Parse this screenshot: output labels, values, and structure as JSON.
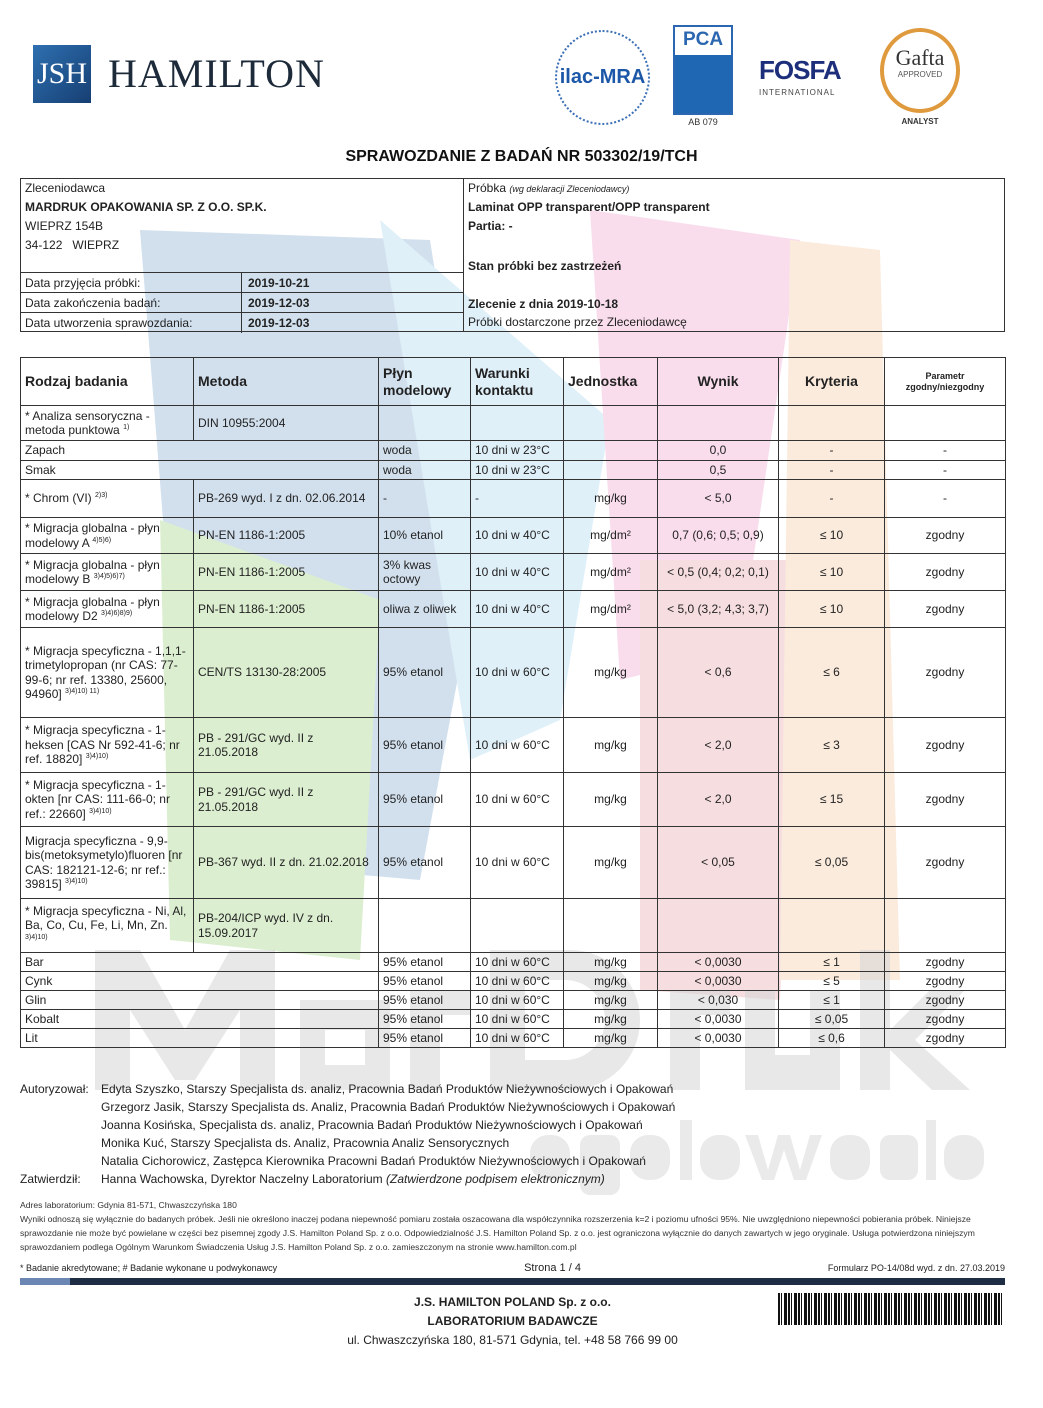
{
  "header": {
    "logo_initials": "JSH",
    "logo_name": "HAMILTON",
    "ilac_logo": "ilac-MRA",
    "pca_logo": "PCA",
    "pca_code": "AB 079",
    "fosfa_logo": "FOSFA",
    "fosfa_sub": "INTERNATIONAL",
    "gafta_logo": "Gafta",
    "gafta_approved": "APPROVED",
    "gafta_sub": "ANALYST"
  },
  "title": "SPRAWOZDANIE Z BADAŃ NR 503302/19/TCH",
  "client": {
    "label": "Zleceniodawca",
    "name": "MARDRUK OPAKOWANIA SP. Z O.O. SP.K.",
    "address1": "WIEPRZ 154B",
    "address2": "34-122   WIEPRZ",
    "dates": [
      {
        "label": "Data przyjęcia próbki:",
        "value": "2019-10-21"
      },
      {
        "label": "Data zakończenia badań:",
        "value": "2019-12-03"
      },
      {
        "label": "Data utworzenia sprawozdania:",
        "value": "2019-12-03"
      }
    ]
  },
  "sample": {
    "label": "Próbka",
    "label_note": "(wg deklaracji Zleceniodawcy)",
    "name": "Laminat OPP transparent/OPP transparent",
    "batch": "Partia: -",
    "condition": "Stan próbki bez zastrzeżeń",
    "order": "Zlecenie z dnia 2019-10-18",
    "delivery": "Próbki dostarczone przez Zleceniodawcę"
  },
  "table": {
    "headers": [
      "Rodzaj badania",
      "Metoda",
      "Płyn modelowy",
      "Warunki kontaktu",
      "Jednostka",
      "Wynik",
      "Kryteria",
      "Parametr zgodny/niezgodny"
    ],
    "rows": [
      {
        "name": "* Analiza sensoryczna - metoda punktowa",
        "sup": "1)",
        "metoda": "DIN 10955:2004",
        "plyn": "",
        "warunki": "",
        "jednostka": "",
        "wynik": "",
        "kryteria": "",
        "param": ""
      },
      {
        "sub": true,
        "name": "Zapach",
        "plyn": "woda",
        "warunki": "10 dni w 23°C",
        "jednostka": "",
        "wynik": "0,0",
        "kryteria": "-",
        "param": "-"
      },
      {
        "sub": true,
        "name": "Smak",
        "plyn": "woda",
        "warunki": "10 dni w 23°C",
        "jednostka": "",
        "wynik": "0,5",
        "kryteria": "-",
        "param": "-"
      },
      {
        "name": "* Chrom (VI)",
        "sup": "2)3)",
        "metoda": "PB-269 wyd. I z dn. 02.06.2014",
        "plyn": "-",
        "warunki": "-",
        "jednostka": "mg/kg",
        "wynik": "< 5,0",
        "kryteria": "-",
        "param": "-"
      },
      {
        "name": "* Migracja globalna - płyn modelowy A",
        "sup": "4)5)6)",
        "metoda": "PN-EN 1186-1:2005",
        "plyn": "10% etanol",
        "warunki": "10 dni w 40°C",
        "jednostka": "mg/dm²",
        "wynik": "0,7 (0,6; 0,5; 0,9)",
        "kryteria": "≤ 10",
        "param": "zgodny"
      },
      {
        "name": "* Migracja globalna - płyn modelowy B",
        "sup": "3)4)5)6)7)",
        "metoda": "PN-EN 1186-1:2005",
        "plyn": "3% kwas octowy",
        "warunki": "10 dni w 40°C",
        "jednostka": "mg/dm²",
        "wynik": "< 0,5 (0,4; 0,2; 0,1)",
        "kryteria": "≤ 10",
        "param": "zgodny"
      },
      {
        "name": "* Migracja globalna - płyn modelowy D2",
        "sup": "3)4)6)8)9)",
        "metoda": "PN-EN 1186-1:2005",
        "plyn": "oliwa z oliwek",
        "warunki": "10 dni w 40°C",
        "jednostka": "mg/dm²",
        "wynik": "< 5,0 (3,2; 4,3; 3,7)",
        "kryteria": "≤ 10",
        "param": "zgodny"
      },
      {
        "name": "* Migracja specyficzna - 1,1,1-trimetylopropan (nr CAS: 77-99-6; nr ref. 13380, 25600, 94960]",
        "sup": "3)4)10) 11)",
        "metoda": "CEN/TS 13130-28:2005",
        "plyn": "95% etanol",
        "warunki": "10 dni w 60°C",
        "jednostka": "mg/kg",
        "wynik": "< 0,6",
        "kryteria": "≤ 6",
        "param": "zgodny"
      },
      {
        "name": "* Migracja specyficzna - 1-heksen [CAS Nr 592-41-6; nr ref. 18820]",
        "sup": "3)4)10)",
        "metoda": "PB - 291/GC wyd. II z 21.05.2018",
        "plyn": "95% etanol",
        "warunki": "10 dni w 60°C",
        "jednostka": "mg/kg",
        "wynik": "< 2,0",
        "kryteria": "≤ 3",
        "param": "zgodny"
      },
      {
        "name": "* Migracja specyficzna - 1-okten  [nr CAS: 111-66-0; nr ref.: 22660]",
        "sup": "3)4)10)",
        "metoda": "PB - 291/GC wyd. II z 21.05.2018",
        "plyn": "95% etanol",
        "warunki": "10 dni w 60°C",
        "jednostka": "mg/kg",
        "wynik": "< 2,0",
        "kryteria": "≤ 15",
        "param": "zgodny"
      },
      {
        "name": "Migracja specyficzna - 9,9-bis(metoksymetylo)fluoren [nr CAS: 182121-12-6; nr ref.: 39815]",
        "sup": "3)4)10)",
        "metoda": "PB-367 wyd. II z dn. 21.02.2018",
        "plyn": "95% etanol",
        "warunki": "10 dni w 60°C",
        "jednostka": "mg/kg",
        "wynik": "< 0,05",
        "kryteria": "≤ 0,05",
        "param": "zgodny"
      },
      {
        "name": "* Migracja specyficzna - Ni, Al, Ba, Co, Cu, Fe, Li, Mn, Zn.",
        "sup": "3)4)10)",
        "metoda": "PB-204/ICP wyd. IV z dn. 15.09.2017",
        "plyn": "",
        "warunki": "",
        "jednostka": "",
        "wynik": "",
        "kryteria": "",
        "param": ""
      },
      {
        "sub": true,
        "name": "Bar",
        "plyn": "95% etanol",
        "warunki": "10 dni w 60°C",
        "jednostka": "mg/kg",
        "wynik": "< 0,0030",
        "kryteria": "≤ 1",
        "param": "zgodny"
      },
      {
        "sub": true,
        "name": "Cynk",
        "plyn": "95% etanol",
        "warunki": "10 dni w 60°C",
        "jednostka": "mg/kg",
        "wynik": "< 0,0030",
        "kryteria": "≤ 5",
        "param": "zgodny"
      },
      {
        "sub": true,
        "name": "Glin",
        "plyn": "95% etanol",
        "warunki": "10 dni w 60°C",
        "jednostka": "mg/kg",
        "wynik": "< 0,030",
        "kryteria": "≤ 1",
        "param": "zgodny"
      },
      {
        "sub": true,
        "name": "Kobalt",
        "plyn": "95% etanol",
        "warunki": "10 dni w 60°C",
        "jednostka": "mg/kg",
        "wynik": "< 0,0030",
        "kryteria": "≤ 0,05",
        "param": "zgodny"
      },
      {
        "sub": true,
        "name": "Lit",
        "plyn": "95% etanol",
        "warunki": "10 dni w 60°C",
        "jednostka": "mg/kg",
        "wynik": "< 0,0030",
        "kryteria": "≤ 0,6",
        "param": "zgodny"
      }
    ]
  },
  "authorization": {
    "authorized_label": "Autoryzował:",
    "authorized": [
      "Edyta Szyszko, Starszy Specjalista ds. analiz, Pracownia Badań Produktów Nieżywnościowych i Opakowań",
      "Grzegorz Jasik, Starszy Specjalista ds. Analiz, Pracownia Badań Produktów Nieżywnościowych i Opakowań",
      "Joanna Kosińska, Specjalista ds. analiz, Pracownia Badań Produktów Nieżywnościowych i Opakowań",
      "Monika Kuć, Starszy Specjalista ds. Analiz, Pracownia Analiz Sensorycznych",
      "Natalia Cichorowicz, Zastępca Kierownika Pracowni Badań Produktów Nieżywnościowych i Opakowań"
    ],
    "approved_label": "Zatwierdził:",
    "approved": "Hanna Wachowska, Dyrektor Naczelny Laboratorium",
    "approved_note": "(Zatwierdzone podpisem elektronicznym)"
  },
  "fine_print": {
    "address": "Adres laboratorium: Gdynia 81-571, Chwaszczyńska 180",
    "disclaimer": "Wyniki odnoszą się wyłącznie do badanych próbek. Jeśli nie określono inaczej podana niepewność pomiaru została oszacowana dla współczynnika rozszerzenia k=2 i poziomu ufności 95%. Nie uwzględniono niepewności pobierania próbek. Niniejsze sprawozdanie nie może być powielane w części bez pisemnej zgody J.S. Hamilton Poland Sp. z o.o. Odpowiedzialność J.S. Hamilton Poland Sp. z o.o. jest ograniczona wyłącznie do danych zawartych w jego oryginale. Usługa potwierdzona niniejszym sprawozdaniem podlega Ogólnym Warunkom Świadczenia Usług J.S. Hamilton Poland Sp. z o.o. zamieszczonym na stronie www.hamilton.com.pl"
  },
  "footer": {
    "legend": "* Badanie akredytowane;  # Badanie wykonane u podwykonawcy",
    "page": "Strona 1 / 4",
    "form": "Formularz PO-14/08d wyd. z dn. 27.03.2019",
    "company": "J.S. HAMILTON POLAND Sp. z o.o.",
    "lab": "LABORATORIUM BADAWCZE",
    "address": "ul. Chwaszczyńska 180, 81-571 Gdynia, tel. +48 58 766 99 00"
  },
  "watermark": {
    "line1": "MarDruk",
    "line2": "opakowania",
    "colors": [
      "#8fb8d8",
      "#b9dcea",
      "#cfe6a8",
      "#f3b6d6",
      "#f6c8a8"
    ]
  }
}
